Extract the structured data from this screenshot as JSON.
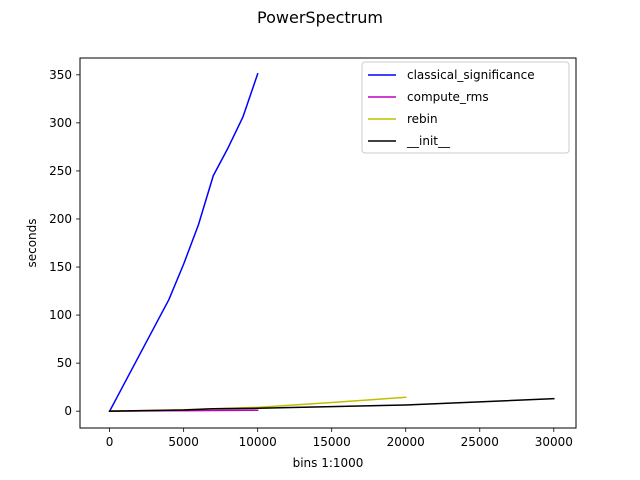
{
  "chart_data": {
    "type": "line",
    "title": "PowerSpectrum",
    "xlabel": "bins 1:1000",
    "ylabel": "seconds",
    "xlim": [
      -2000,
      31500
    ],
    "ylim": [
      -17.5,
      367.5
    ],
    "xticks": [
      0,
      5000,
      10000,
      15000,
      20000,
      25000,
      30000
    ],
    "yticks": [
      0,
      50,
      100,
      150,
      200,
      250,
      300,
      350
    ],
    "grid": false,
    "legend_position": "top-right",
    "series": [
      {
        "name": "classical_significance",
        "color": "#0000ff",
        "x": [
          0,
          1000,
          2000,
          3000,
          4000,
          5000,
          6000,
          7000,
          8000,
          9000,
          10000
        ],
        "y": [
          0,
          29,
          58,
          87,
          116,
          153,
          194,
          245,
          274,
          306,
          351
        ]
      },
      {
        "name": "compute_rms",
        "color": "#bf00bf",
        "x": [
          0,
          2000,
          4000,
          6000,
          8000,
          10000
        ],
        "y": [
          0,
          0.2,
          0.4,
          0.6,
          0.8,
          1.0
        ]
      },
      {
        "name": "rebin",
        "color": "#bfbf00",
        "x": [
          0,
          5000,
          10000,
          15000,
          20000
        ],
        "y": [
          0,
          1.5,
          4,
          9,
          14.5
        ]
      },
      {
        "name": "__init__",
        "color": "#000000",
        "x": [
          0,
          5000,
          7000,
          10000,
          20000,
          30000
        ],
        "y": [
          0,
          1.2,
          2.5,
          3,
          6.5,
          13
        ]
      }
    ]
  }
}
